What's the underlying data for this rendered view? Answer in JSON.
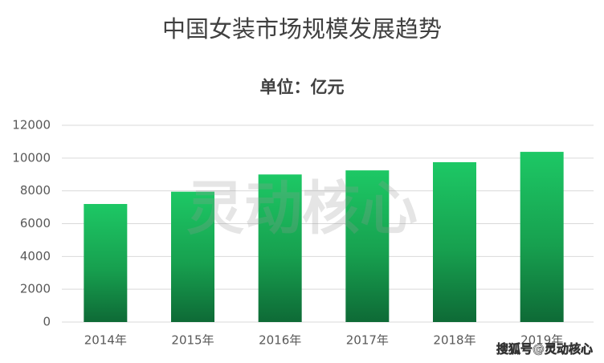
{
  "chart_data": {
    "type": "bar",
    "title": "中国女装市场规模发展趋势",
    "subtitle": "单位：亿元",
    "categories": [
      "2014年",
      "2015年",
      "2016年",
      "2017年",
      "2018年",
      "2019年"
    ],
    "values": [
      7200,
      7950,
      9000,
      9250,
      9750,
      10380
    ],
    "color": "#1dc865",
    "ylim": [
      0,
      12000
    ],
    "yticks": [
      0,
      2000,
      4000,
      6000,
      8000,
      10000,
      12000
    ],
    "grid": true,
    "watermark": "灵动核心",
    "credit": "搜狐号@灵动核心"
  }
}
